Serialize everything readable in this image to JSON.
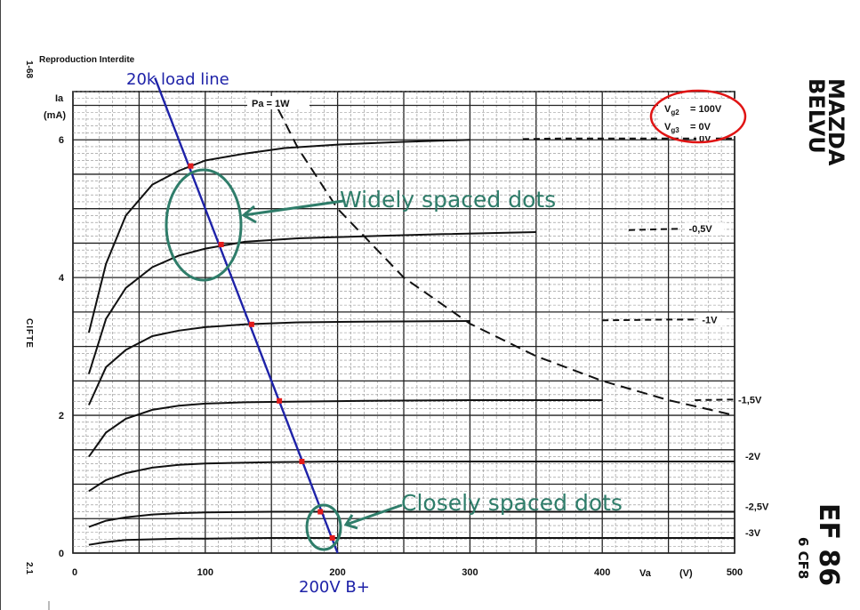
{
  "chart_data": {
    "type": "line",
    "header": "Reproduction Interdite",
    "top_left_code": "1-68",
    "bottom_left_code": "2.1",
    "left_vertical_text": "CIFTE",
    "brand_lines": [
      "MAZDA",
      "BELVU"
    ],
    "tube_name": "EF 86",
    "tube_alt_name": "6 CF8",
    "ylabel": "Ia",
    "yunit": "(mA)",
    "xlabel": "Va",
    "xunit": "(V)",
    "xlim": [
      0,
      500
    ],
    "ylim": [
      0,
      6.7
    ],
    "x_ticks": [
      0,
      100,
      200,
      300,
      400,
      500
    ],
    "y_ticks": [
      0,
      2,
      4,
      6
    ],
    "conditions": [
      {
        "label": "Vg2",
        "value": "= 100V"
      },
      {
        "label": "Vg3",
        "value": "= 0V"
      }
    ],
    "power_curve_label": "Pa = 1W",
    "series": [
      {
        "name": "Vg1 = 0V",
        "label": "0V",
        "x": [
          12,
          25,
          40,
          60,
          80,
          100,
          130,
          160,
          200,
          250,
          300,
          340,
          370,
          400,
          460,
          500
        ],
        "values": [
          3.2,
          4.2,
          4.9,
          5.35,
          5.55,
          5.7,
          5.8,
          5.88,
          5.93,
          5.97,
          6.0,
          6.01,
          6.02,
          6.02,
          6.02,
          6.02
        ]
      },
      {
        "name": "Vg1 = -0,5V",
        "label": "-0,5V",
        "x": [
          12,
          25,
          40,
          60,
          80,
          100,
          130,
          170,
          220,
          280,
          350,
          420,
          460
        ],
        "values": [
          2.6,
          3.4,
          3.85,
          4.15,
          4.32,
          4.42,
          4.52,
          4.57,
          4.6,
          4.63,
          4.66,
          4.69,
          4.71
        ]
      },
      {
        "name": "Vg1 = -1V",
        "label": "-1V",
        "x": [
          12,
          25,
          40,
          60,
          80,
          100,
          130,
          170,
          220,
          300,
          400,
          450,
          470
        ],
        "values": [
          2.15,
          2.7,
          2.95,
          3.15,
          3.23,
          3.28,
          3.32,
          3.35,
          3.36,
          3.37,
          3.38,
          3.39,
          3.39
        ]
      },
      {
        "name": "Vg1 = -1,5V",
        "label": "-1,5V",
        "x": [
          12,
          25,
          40,
          60,
          80,
          100,
          130,
          170,
          220,
          300,
          400,
          470,
          500
        ],
        "values": [
          1.4,
          1.75,
          1.95,
          2.08,
          2.14,
          2.17,
          2.19,
          2.2,
          2.21,
          2.22,
          2.22,
          2.22,
          2.23
        ]
      },
      {
        "name": "Vg1 = -2V",
        "label": "-2V",
        "x": [
          12,
          25,
          40,
          60,
          80,
          100,
          150,
          200,
          300,
          400,
          500
        ],
        "values": [
          0.9,
          1.06,
          1.16,
          1.24,
          1.28,
          1.3,
          1.32,
          1.33,
          1.33,
          1.33,
          1.33
        ]
      },
      {
        "name": "Vg1 = -2,5V",
        "label": "-2,5V",
        "x": [
          12,
          25,
          40,
          60,
          80,
          100,
          150,
          200,
          300,
          400,
          500
        ],
        "values": [
          0.38,
          0.47,
          0.52,
          0.56,
          0.58,
          0.59,
          0.6,
          0.6,
          0.6,
          0.6,
          0.6
        ]
      },
      {
        "name": "Vg1 = -3V",
        "label": "-3V",
        "x": [
          12,
          25,
          40,
          60,
          80,
          100,
          150,
          200,
          300,
          400,
          500
        ],
        "values": [
          0.12,
          0.16,
          0.19,
          0.2,
          0.21,
          0.21,
          0.22,
          0.22,
          0.22,
          0.22,
          0.22
        ]
      }
    ],
    "power_curve": {
      "x": [
        155,
        170,
        200,
        250,
        300,
        350,
        400,
        450,
        500
      ],
      "values": [
        6.45,
        5.88,
        5.0,
        4.0,
        3.33,
        2.86,
        2.5,
        2.22,
        2.0
      ]
    },
    "load_line": {
      "label": "20k load line",
      "x": [
        62,
        200
      ],
      "values": [
        6.9,
        0
      ]
    },
    "operating_points": [
      {
        "x": 89,
        "y": 5.62
      },
      {
        "x": 112,
        "y": 4.48
      },
      {
        "x": 135,
        "y": 3.32
      },
      {
        "x": 156,
        "y": 2.21
      },
      {
        "x": 173,
        "y": 1.33
      },
      {
        "x": 187,
        "y": 0.6
      },
      {
        "x": 196,
        "y": 0.22
      }
    ],
    "annotations": {
      "widely": "Widely spaced dots",
      "closely": "Closely spaced dots",
      "bplus": "200V B+"
    }
  }
}
